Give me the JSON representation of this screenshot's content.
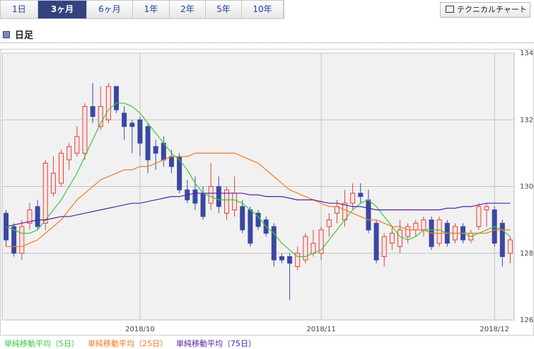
{
  "tabs": [
    "1日",
    "3ヶ月",
    "6ヶ月",
    "1年",
    "2年",
    "5年",
    "10年"
  ],
  "button": "テクニカルチャート",
  "section_title": "日足",
  "chart_data": {
    "type": "candlestick",
    "categories": [
      null,
      null,
      null,
      null,
      null,
      null,
      null,
      null,
      null,
      null,
      null,
      null,
      null,
      null,
      null,
      null,
      null,
      "2018/10",
      null,
      null,
      null,
      null,
      null,
      null,
      null,
      null,
      null,
      null,
      null,
      null,
      null,
      null,
      null,
      null,
      null,
      null,
      null,
      null,
      null,
      null,
      "2018/11",
      null,
      null,
      null,
      null,
      null,
      null,
      null,
      null,
      null,
      null,
      null,
      null,
      null,
      null,
      null,
      null,
      null,
      null,
      null,
      null,
      null,
      "2018/12",
      null,
      null
    ],
    "open": [
      129.2,
      128.8,
      128.0,
      128.9,
      129.4,
      128.9,
      129.8,
      130.1,
      130.8,
      131.0,
      131.0,
      132.4,
      131.8,
      132.0,
      133.0,
      132.2,
      131.9,
      132.0,
      131.8,
      131.2,
      131.3,
      130.9,
      130.9,
      129.9,
      129.9,
      129.8,
      129.5,
      130.0,
      129.2,
      129.3,
      129.4,
      129.3,
      129.2,
      129.0,
      128.8,
      127.9,
      127.9,
      127.6,
      127.8,
      128.0,
      128.0,
      128.8,
      129.2,
      129.0,
      129.5,
      129.8,
      129.6,
      128.9,
      127.9,
      128.3,
      128.2,
      128.5,
      128.7,
      128.7,
      129.0,
      128.3,
      128.9,
      128.4,
      128.8,
      128.4,
      128.8,
      129.3,
      129.3,
      128.9,
      128.0
    ],
    "high": [
      129.3,
      128.9,
      129.0,
      129.5,
      129.6,
      130.8,
      130.9,
      131.1,
      131.3,
      131.8,
      132.5,
      133.1,
      133.0,
      133.1,
      133.0,
      132.4,
      132.0,
      132.1,
      131.9,
      131.4,
      131.5,
      131.1,
      131.0,
      130.2,
      130.3,
      130.0,
      130.7,
      130.3,
      130.0,
      130.3,
      129.6,
      129.4,
      129.3,
      129.1,
      128.9,
      128.0,
      128.0,
      128.2,
      128.6,
      128.7,
      128.8,
      129.2,
      129.6,
      129.9,
      130.1,
      130.1,
      129.9,
      129.0,
      128.6,
      128.8,
      129.0,
      128.9,
      129.0,
      129.1,
      129.1,
      129.1,
      129.0,
      128.9,
      128.9,
      128.7,
      129.5,
      129.5,
      129.4,
      129.0,
      128.5
    ],
    "low": [
      128.2,
      127.9,
      127.8,
      128.7,
      128.7,
      128.7,
      129.7,
      130.0,
      130.5,
      130.9,
      130.8,
      131.9,
      131.7,
      131.9,
      132.2,
      131.4,
      131.0,
      130.9,
      130.4,
      130.5,
      130.6,
      130.4,
      129.8,
      129.5,
      129.3,
      129.0,
      129.3,
      129.2,
      129.0,
      129.1,
      128.6,
      128.2,
      128.7,
      128.5,
      127.6,
      127.7,
      126.6,
      127.5,
      127.7,
      127.9,
      127.8,
      128.5,
      128.9,
      128.8,
      129.3,
      129.5,
      128.6,
      127.7,
      127.6,
      128.1,
      128.0,
      128.3,
      128.5,
      128.5,
      128.1,
      128.2,
      128.2,
      128.3,
      128.3,
      128.3,
      128.7,
      128.8,
      128.2,
      127.6,
      127.7
    ],
    "close": [
      128.4,
      128.0,
      128.8,
      129.3,
      128.8,
      130.7,
      130.4,
      131.0,
      131.2,
      131.5,
      132.4,
      132.1,
      132.4,
      133.0,
      132.3,
      131.8,
      131.8,
      131.3,
      130.8,
      131.0,
      130.8,
      130.6,
      129.9,
      129.6,
      129.5,
      129.1,
      130.0,
      129.4,
      129.9,
      129.8,
      128.7,
      128.3,
      128.8,
      128.6,
      127.8,
      127.8,
      127.7,
      128.0,
      128.5,
      128.3,
      128.7,
      129.0,
      129.4,
      129.5,
      129.8,
      129.7,
      128.7,
      127.8,
      128.5,
      128.6,
      128.7,
      128.8,
      128.9,
      129.0,
      128.2,
      129.0,
      128.3,
      128.8,
      128.4,
      128.6,
      129.4,
      129.4,
      128.3,
      127.9,
      128.4
    ],
    "up_color": "#e0403a",
    "down_color": "#3a48a2",
    "series": [
      {
        "name": "単純移動平均（5日）",
        "color": "#3cc83c",
        "values": [
          128.8,
          128.7,
          128.6,
          128.6,
          128.7,
          129.0,
          129.3,
          129.6,
          130.0,
          130.4,
          130.9,
          131.4,
          131.9,
          132.3,
          132.5,
          132.5,
          132.4,
          132.2,
          131.9,
          131.6,
          131.3,
          131.0,
          130.8,
          130.5,
          130.1,
          129.8,
          129.7,
          129.6,
          129.6,
          129.6,
          129.5,
          129.3,
          129.1,
          128.8,
          128.6,
          128.3,
          128.1,
          127.9,
          127.9,
          128.0,
          128.1,
          128.4,
          128.7,
          129.0,
          129.3,
          129.5,
          129.6,
          129.4,
          129.1,
          128.8,
          128.5,
          128.4,
          128.5,
          128.7,
          128.7,
          128.7,
          128.6,
          128.6,
          128.6,
          128.5,
          128.6,
          128.7,
          128.8,
          128.7,
          128.5
        ]
      },
      {
        "name": "単純移動平均（25日）",
        "color": "#f07a1e",
        "values": [
          128.2,
          128.2,
          128.2,
          128.3,
          128.4,
          128.6,
          128.8,
          129.0,
          129.3,
          129.6,
          129.8,
          130.0,
          130.2,
          130.3,
          130.4,
          130.5,
          130.5,
          130.6,
          130.6,
          130.7,
          130.8,
          130.9,
          130.9,
          130.9,
          131.0,
          131.0,
          131.0,
          131.0,
          131.0,
          131.0,
          130.9,
          130.8,
          130.7,
          130.5,
          130.3,
          130.1,
          129.9,
          129.8,
          129.7,
          129.6,
          129.5,
          129.4,
          129.4,
          129.3,
          129.2,
          129.1,
          129.0,
          129.0,
          128.9,
          128.8,
          128.8,
          128.7,
          128.7,
          128.7,
          128.6,
          128.6,
          128.6,
          128.6,
          128.6,
          128.6,
          128.6,
          128.6,
          128.7,
          128.7,
          128.7
        ]
      },
      {
        "name": "単純移動平均（75日）",
        "color": "#5222a6",
        "values": [
          128.8,
          128.85,
          128.9,
          128.95,
          129.0,
          129.0,
          129.05,
          129.1,
          129.1,
          129.15,
          129.2,
          129.25,
          129.3,
          129.35,
          129.4,
          129.45,
          129.5,
          129.5,
          129.55,
          129.6,
          129.65,
          129.7,
          129.7,
          129.75,
          129.8,
          129.8,
          129.8,
          129.8,
          129.8,
          129.8,
          129.8,
          129.75,
          129.75,
          129.7,
          129.7,
          129.7,
          129.65,
          129.6,
          129.6,
          129.6,
          129.55,
          129.5,
          129.5,
          129.45,
          129.4,
          129.4,
          129.35,
          129.3,
          129.3,
          129.3,
          129.3,
          129.3,
          129.3,
          129.3,
          129.3,
          129.3,
          129.35,
          129.35,
          129.4,
          129.4,
          129.45,
          129.5,
          129.5,
          129.5,
          129.5
        ]
      }
    ],
    "ylim": [
      126,
      134
    ],
    "yticks": [
      126,
      128,
      130,
      132,
      134
    ],
    "grid": true
  }
}
